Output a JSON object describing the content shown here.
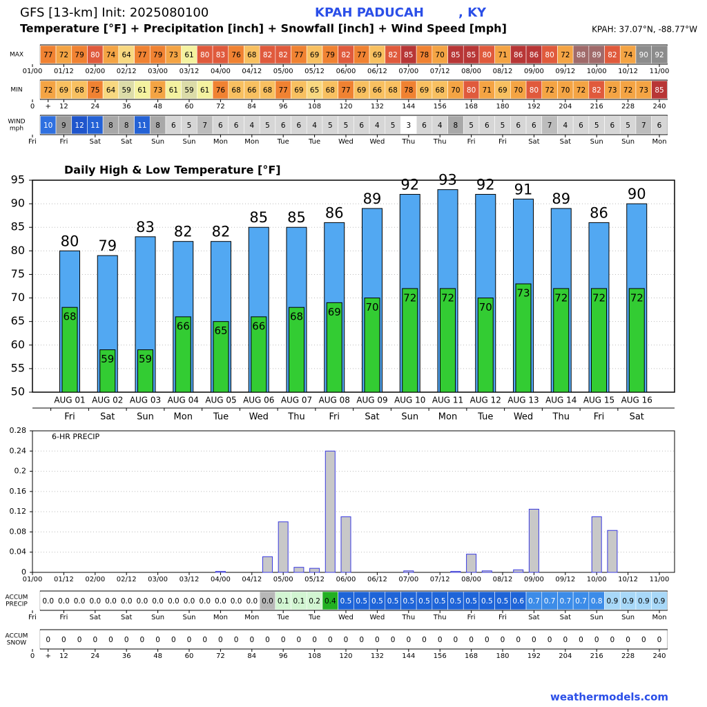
{
  "header": {
    "title": "GFS [13-km] Init: 2025080100",
    "station": "KPAH PADUCAH",
    "state": ", KY",
    "subtitle": "Temperature [°F] + Precipitation [inch] + Snowfall [inch] + Wind Speed [mph]",
    "coords": "KPAH: 37.07°N, -88.77°W"
  },
  "footer": "weathermodels.com",
  "chart_data": [
    {
      "type": "strip",
      "label": [
        "MAX"
      ],
      "x": [
        6,
        12,
        18,
        24,
        30,
        36,
        42,
        48,
        54,
        60,
        66,
        72,
        78,
        84,
        90,
        96,
        102,
        108,
        114,
        120,
        126,
        132,
        138,
        144,
        150,
        156,
        162,
        168,
        174,
        180,
        186,
        192,
        198,
        204,
        210,
        216,
        222,
        228,
        234,
        240
      ],
      "values": [
        77,
        72,
        79,
        80,
        74,
        64,
        77,
        79,
        73,
        61,
        80,
        83,
        76,
        68,
        82,
        82,
        77,
        69,
        79,
        82,
        77,
        69,
        82,
        85,
        78,
        70,
        85,
        85,
        80,
        71,
        86,
        86,
        80,
        72,
        88,
        89,
        82,
        74,
        90,
        92
      ],
      "xlim": [
        0,
        240
      ],
      "xticks": [
        {
          "value": 0,
          "label": "01/00"
        },
        {
          "value": 12,
          "label": "01/12"
        },
        {
          "value": 24,
          "label": "02/00"
        },
        {
          "value": 36,
          "label": "02/12"
        },
        {
          "value": 48,
          "label": "03/00"
        },
        {
          "value": 60,
          "label": "03/12"
        },
        {
          "value": 72,
          "label": "04/00"
        },
        {
          "value": 84,
          "label": "04/12"
        },
        {
          "value": 96,
          "label": "05/00"
        },
        {
          "value": 108,
          "label": "05/12"
        },
        {
          "value": 120,
          "label": "06/00"
        },
        {
          "value": 132,
          "label": "06/12"
        },
        {
          "value": 144,
          "label": "07/00"
        },
        {
          "value": 156,
          "label": "07/12"
        },
        {
          "value": 168,
          "label": "08/00"
        },
        {
          "value": 180,
          "label": "08/12"
        },
        {
          "value": 192,
          "label": "09/00"
        },
        {
          "value": 204,
          "label": "09/12"
        },
        {
          "value": 216,
          "label": "10/00"
        },
        {
          "value": 228,
          "label": "10/12"
        },
        {
          "value": 240,
          "label": "11/00"
        }
      ]
    },
    {
      "type": "strip",
      "label": [
        "MIN"
      ],
      "x": [
        6,
        12,
        18,
        24,
        30,
        36,
        42,
        48,
        54,
        60,
        66,
        72,
        78,
        84,
        90,
        96,
        102,
        108,
        114,
        120,
        126,
        132,
        138,
        144,
        150,
        156,
        162,
        168,
        174,
        180,
        186,
        192,
        198,
        204,
        210,
        216,
        222,
        228,
        234,
        240
      ],
      "values": [
        72,
        69,
        68,
        75,
        64,
        59,
        61,
        73,
        61,
        59,
        61,
        76,
        68,
        66,
        68,
        77,
        69,
        65,
        68,
        77,
        69,
        66,
        68,
        78,
        69,
        68,
        70,
        80,
        71,
        69,
        70,
        80,
        72,
        70,
        72,
        82,
        73,
        72,
        73,
        85
      ],
      "xlim": [
        0,
        240
      ],
      "xticks": [
        0,
        {
          "value": 6,
          "label": "+"
        },
        12,
        24,
        36,
        48,
        60,
        72,
        84,
        96,
        108,
        120,
        132,
        144,
        156,
        168,
        180,
        192,
        204,
        216,
        228,
        240
      ]
    },
    {
      "type": "strip",
      "label": [
        "WIND",
        "mph"
      ],
      "x": [
        6,
        12,
        18,
        24,
        30,
        36,
        42,
        48,
        54,
        60,
        66,
        72,
        78,
        84,
        90,
        96,
        102,
        108,
        114,
        120,
        126,
        132,
        138,
        144,
        150,
        156,
        162,
        168,
        174,
        180,
        186,
        192,
        198,
        204,
        210,
        216,
        222,
        228,
        234,
        240
      ],
      "values": [
        10,
        9,
        12,
        11,
        8,
        8,
        11,
        8,
        6,
        5,
        7,
        6,
        6,
        4,
        5,
        6,
        6,
        4,
        5,
        5,
        6,
        4,
        5,
        3,
        6,
        4,
        8,
        5,
        6,
        5,
        6,
        6,
        7,
        4,
        6,
        5,
        6,
        5,
        7,
        6
      ],
      "xlim": [
        0,
        240
      ],
      "xticks": [
        {
          "value": 0,
          "label": "Fri"
        },
        {
          "value": 12,
          "label": "Fri"
        },
        {
          "value": 24,
          "label": "Sat"
        },
        {
          "value": 36,
          "label": "Sat"
        },
        {
          "value": 48,
          "label": "Sun"
        },
        {
          "value": 60,
          "label": "Sun"
        },
        {
          "value": 72,
          "label": "Mon"
        },
        {
          "value": 84,
          "label": "Mon"
        },
        {
          "value": 96,
          "label": "Tue"
        },
        {
          "value": 108,
          "label": "Tue"
        },
        {
          "value": 120,
          "label": "Wed"
        },
        {
          "value": 132,
          "label": "Wed"
        },
        {
          "value": 144,
          "label": "Thu"
        },
        {
          "value": 156,
          "label": "Thu"
        },
        {
          "value": 168,
          "label": "Fri"
        },
        {
          "value": 180,
          "label": "Fri"
        },
        {
          "value": 192,
          "label": "Sat"
        },
        {
          "value": 204,
          "label": "Sat"
        },
        {
          "value": 216,
          "label": "Sun"
        },
        {
          "value": 228,
          "label": "Sun"
        },
        {
          "value": 240,
          "label": "Mon"
        }
      ]
    },
    {
      "type": "bar",
      "title": "Daily High & Low Temperature [°F]",
      "categories": [
        "AUG 01",
        "AUG 02",
        "AUG 03",
        "AUG 04",
        "AUG 05",
        "AUG 06",
        "AUG 07",
        "AUG 08",
        "AUG 09",
        "AUG 10",
        "AUG 11",
        "AUG 12",
        "AUG 13",
        "AUG 14",
        "AUG 15",
        "AUG 16"
      ],
      "weekdays": [
        "Fri",
        "Sat",
        "Sun",
        "Mon",
        "Tue",
        "Wed",
        "Thu",
        "Fri",
        "Sat",
        "Sun",
        "Mon",
        "Tue",
        "Wed",
        "Thu",
        "Fri",
        "Sat"
      ],
      "series": [
        {
          "color": "#52a8f2",
          "values": [
            80,
            79,
            83,
            82,
            82,
            85,
            85,
            86,
            89,
            92,
            93,
            92,
            91,
            89,
            86,
            90
          ]
        },
        {
          "color": "#33cc33",
          "values": [
            68,
            59,
            59,
            66,
            65,
            66,
            68,
            69,
            70,
            72,
            72,
            70,
            73,
            72,
            72,
            72
          ]
        }
      ],
      "ylim": [
        50,
        95
      ],
      "yticks": [
        50,
        55,
        60,
        65,
        70,
        75,
        80,
        85,
        90,
        95
      ],
      "grid": true
    },
    {
      "type": "bar",
      "title": "6-HR PRECIP",
      "color": "#c8c8c8",
      "x": [
        6,
        12,
        18,
        24,
        30,
        36,
        42,
        48,
        54,
        60,
        66,
        72,
        78,
        84,
        90,
        96,
        102,
        108,
        114,
        120,
        126,
        132,
        138,
        144,
        150,
        156,
        162,
        168,
        174,
        180,
        186,
        192,
        198,
        204,
        210,
        216,
        222,
        228,
        234,
        240
      ],
      "values": [
        0,
        0,
        0,
        0,
        0,
        0,
        0,
        0,
        0,
        0,
        0,
        0.002,
        0,
        0,
        0.031,
        0.1,
        0.01,
        0.008,
        0.24,
        0.11,
        0,
        0,
        0,
        0.003,
        0,
        0,
        0.002,
        0.036,
        0.003,
        0,
        0.005,
        0.125,
        0,
        0,
        0,
        0.11,
        0.083,
        0,
        0,
        0
      ],
      "xlim": [
        0,
        240
      ],
      "xticks": [
        {
          "value": 0,
          "label": "01/00"
        },
        {
          "value": 12,
          "label": "01/12"
        },
        {
          "value": 24,
          "label": "02/00"
        },
        {
          "value": 36,
          "label": "02/12"
        },
        {
          "value": 48,
          "label": "03/00"
        },
        {
          "value": 60,
          "label": "03/12"
        },
        {
          "value": 72,
          "label": "04/00"
        },
        {
          "value": 84,
          "label": "04/12"
        },
        {
          "value": 96,
          "label": "05/00"
        },
        {
          "value": 108,
          "label": "05/12"
        },
        {
          "value": 120,
          "label": "06/00"
        },
        {
          "value": 132,
          "label": "06/12"
        },
        {
          "value": 144,
          "label": "07/00"
        },
        {
          "value": 156,
          "label": "07/12"
        },
        {
          "value": 168,
          "label": "08/00"
        },
        {
          "value": 180,
          "label": "08/12"
        },
        {
          "value": 192,
          "label": "09/00"
        },
        {
          "value": 204,
          "label": "09/12"
        },
        {
          "value": 216,
          "label": "10/00"
        },
        {
          "value": 228,
          "label": "10/12"
        },
        {
          "value": 240,
          "label": "11/00"
        }
      ],
      "ylim": [
        0,
        0.28
      ],
      "yticks": [
        0,
        0.04,
        0.08,
        0.12,
        0.16,
        0.2,
        0.24,
        0.28
      ],
      "grid": true
    },
    {
      "type": "strip",
      "label": [
        "ACCUM",
        "PRECIP"
      ],
      "x": [
        6,
        12,
        18,
        24,
        30,
        36,
        42,
        48,
        54,
        60,
        66,
        72,
        78,
        84,
        90,
        96,
        102,
        108,
        114,
        120,
        126,
        132,
        138,
        144,
        150,
        156,
        162,
        168,
        174,
        180,
        186,
        192,
        198,
        204,
        210,
        216,
        222,
        228,
        234,
        240
      ],
      "values": [
        0,
        0,
        0,
        0,
        0,
        0,
        0,
        0,
        0,
        0,
        0,
        0.002,
        0.002,
        0.002,
        0.033,
        0.133,
        0.143,
        0.151,
        0.391,
        0.501,
        0.501,
        0.501,
        0.501,
        0.504,
        0.504,
        0.504,
        0.506,
        0.542,
        0.545,
        0.545,
        0.55,
        0.675,
        0.675,
        0.675,
        0.675,
        0.785,
        0.868,
        0.868,
        0.868,
        0.868
      ],
      "value_labels": [
        "0.0",
        "0.0",
        "0.0",
        "0.0",
        "0.0",
        "0.0",
        "0.0",
        "0.0",
        "0.0",
        "0.0",
        "0.0",
        "0.0",
        "0.0",
        "0.0",
        "0.0",
        "0.1",
        "0.1",
        "0.2",
        "0.4",
        "0.5",
        "0.5",
        "0.5",
        "0.5",
        "0.5",
        "0.5",
        "0.5",
        "0.5",
        "0.5",
        "0.5",
        "0.5",
        "0.6",
        "0.7",
        "0.7",
        "0.7",
        "0.7",
        "0.8",
        "0.9",
        "0.9",
        "0.9",
        "0.9"
      ],
      "xlim": [
        0,
        240
      ],
      "xticks": [
        {
          "value": 0,
          "label": "Fri"
        },
        {
          "value": 12,
          "label": "Fri"
        },
        {
          "value": 24,
          "label": "Sat"
        },
        {
          "value": 36,
          "label": "Sat"
        },
        {
          "value": 48,
          "label": "Sun"
        },
        {
          "value": 60,
          "label": "Sun"
        },
        {
          "value": 72,
          "label": "Mon"
        },
        {
          "value": 84,
          "label": "Mon"
        },
        {
          "value": 96,
          "label": "Tue"
        },
        {
          "value": 108,
          "label": "Tue"
        },
        {
          "value": 120,
          "label": "Wed"
        },
        {
          "value": 132,
          "label": "Wed"
        },
        {
          "value": 144,
          "label": "Thu"
        },
        {
          "value": 156,
          "label": "Thu"
        },
        {
          "value": 168,
          "label": "Fri"
        },
        {
          "value": 180,
          "label": "Fri"
        },
        {
          "value": 192,
          "label": "Sat"
        },
        {
          "value": 204,
          "label": "Sat"
        },
        {
          "value": 216,
          "label": "Sun"
        },
        {
          "value": 228,
          "label": "Sun"
        },
        {
          "value": 240,
          "label": "Mon"
        }
      ]
    },
    {
      "type": "strip",
      "label": [
        "ACCUM",
        "SNOW"
      ],
      "x": [
        6,
        12,
        18,
        24,
        30,
        36,
        42,
        48,
        54,
        60,
        66,
        72,
        78,
        84,
        90,
        96,
        102,
        108,
        114,
        120,
        126,
        132,
        138,
        144,
        150,
        156,
        162,
        168,
        174,
        180,
        186,
        192,
        198,
        204,
        210,
        216,
        222,
        228,
        234,
        240
      ],
      "values": [
        0,
        0,
        0,
        0,
        0,
        0,
        0,
        0,
        0,
        0,
        0,
        0,
        0,
        0,
        0,
        0,
        0,
        0,
        0,
        0,
        0,
        0,
        0,
        0,
        0,
        0,
        0,
        0,
        0,
        0,
        0,
        0,
        0,
        0,
        0,
        0,
        0,
        0,
        0,
        0
      ],
      "xlim": [
        0,
        240
      ],
      "xticks": [
        0,
        {
          "value": 6,
          "label": "+"
        },
        12,
        24,
        36,
        48,
        60,
        72,
        84,
        96,
        108,
        120,
        132,
        144,
        156,
        168,
        180,
        192,
        204,
        216,
        228,
        240
      ]
    }
  ]
}
